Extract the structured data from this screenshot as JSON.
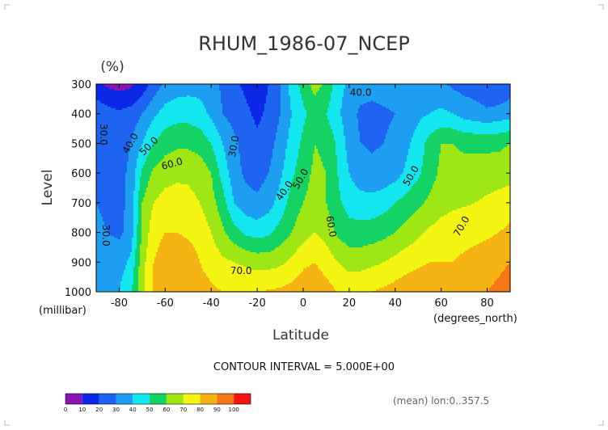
{
  "chart_data": {
    "type": "heatmap",
    "title": "RHUM_1986-07_NCEP",
    "unit_label": "(%)",
    "xlabel": "Latitude",
    "ylabel": "Level",
    "x_unit": "(degrees_north)",
    "y_unit": "(millibar)",
    "xlim": [
      -90,
      90
    ],
    "ylim": [
      300,
      1000
    ],
    "y_reversed": true,
    "x_ticks": [
      "-80",
      "-60",
      "-40",
      "-20",
      "0",
      "20",
      "40",
      "60",
      "80"
    ],
    "x_tick_values": [
      -80,
      -60,
      -40,
      -20,
      0,
      20,
      40,
      60,
      80
    ],
    "y_ticks": [
      "300",
      "400",
      "500",
      "600",
      "700",
      "800",
      "900",
      "1000"
    ],
    "y_tick_values": [
      300,
      400,
      500,
      600,
      700,
      800,
      900,
      1000
    ],
    "contour_interval_text": "CONTOUR INTERVAL = 5.000E+00",
    "footer_text": "(mean) lon:0..357.5",
    "colorbar": {
      "ticks": [
        "0",
        "10",
        "20",
        "30",
        "40",
        "50",
        "60",
        "70",
        "80",
        "90",
        "100"
      ],
      "colors": [
        "#8a14b4",
        "#0a28e6",
        "#1e64f0",
        "#1e9ef0",
        "#14e6f0",
        "#14d264",
        "#9ee614",
        "#f5f514",
        "#f5b414",
        "#f57814",
        "#f51414"
      ]
    },
    "contour_labels": [
      {
        "text": "30.0",
        "lat": -30,
        "lev": 510,
        "rot": -80
      },
      {
        "text": "30.0",
        "lat": -86,
        "lev": 810,
        "rot": 90
      },
      {
        "text": "30.0",
        "lat": -87,
        "lev": 470,
        "rot": 90
      },
      {
        "text": "40.0",
        "lat": -75,
        "lev": 500,
        "rot": -60
      },
      {
        "text": "50.0",
        "lat": -67,
        "lev": 510,
        "rot": -45
      },
      {
        "text": "60.0",
        "lat": -57,
        "lev": 570,
        "rot": -15
      },
      {
        "text": "70.0",
        "lat": -27,
        "lev": 930,
        "rot": 0
      },
      {
        "text": "40.0",
        "lat": -8,
        "lev": 660,
        "rot": -55
      },
      {
        "text": "50.0",
        "lat": -1,
        "lev": 620,
        "rot": -60
      },
      {
        "text": "60.0",
        "lat": 12,
        "lev": 780,
        "rot": 80
      },
      {
        "text": "40.0",
        "lat": 25,
        "lev": 330,
        "rot": 0
      },
      {
        "text": "50.0",
        "lat": 47,
        "lev": 610,
        "rot": -60
      },
      {
        "text": "70.0",
        "lat": 69,
        "lev": 780,
        "rot": -60
      }
    ],
    "field": {
      "lat": [
        -90,
        -85,
        -80,
        -75,
        -70,
        -65,
        -60,
        -55,
        -50,
        -45,
        -40,
        -35,
        -30,
        -25,
        -20,
        -15,
        -10,
        -5,
        0,
        5,
        10,
        15,
        20,
        25,
        30,
        35,
        40,
        45,
        50,
        55,
        60,
        65,
        70,
        75,
        80,
        85,
        90
      ],
      "lev": [
        300,
        400,
        500,
        600,
        700,
        800,
        900,
        1000
      ],
      "values": [
        [
          14,
          8,
          6,
          8,
          14,
          24,
          32,
          35,
          36,
          36,
          34,
          28,
          22,
          18,
          15,
          20,
          30,
          44,
          54,
          64,
          58,
          44,
          38,
          35,
          35,
          36,
          37,
          38,
          36,
          34,
          32,
          28,
          26,
          25,
          22,
          20,
          24
        ],
        [
          26,
          24,
          22,
          24,
          30,
          38,
          44,
          46,
          46,
          44,
          38,
          30,
          26,
          22,
          18,
          22,
          30,
          40,
          48,
          54,
          50,
          42,
          34,
          28,
          26,
          28,
          30,
          34,
          38,
          40,
          42,
          40,
          36,
          34,
          32,
          34,
          36
        ],
        [
          28,
          26,
          26,
          30,
          40,
          50,
          56,
          58,
          58,
          56,
          50,
          40,
          32,
          26,
          22,
          26,
          34,
          44,
          52,
          60,
          58,
          48,
          36,
          30,
          29,
          30,
          33,
          38,
          44,
          54,
          60,
          60,
          58,
          58,
          58,
          58,
          60
        ],
        [
          30,
          28,
          27,
          32,
          52,
          62,
          66,
          68,
          68,
          66,
          60,
          46,
          34,
          28,
          26,
          30,
          38,
          48,
          56,
          62,
          60,
          50,
          40,
          34,
          32,
          33,
          36,
          42,
          48,
          56,
          62,
          64,
          64,
          64,
          64,
          65,
          66
        ],
        [
          30,
          28,
          27,
          33,
          60,
          70,
          74,
          74,
          73,
          70,
          64,
          54,
          40,
          34,
          32,
          36,
          44,
          54,
          60,
          64,
          60,
          52,
          46,
          44,
          44,
          46,
          50,
          54,
          58,
          62,
          66,
          68,
          69,
          70,
          72,
          74,
          76
        ],
        [
          32,
          30,
          28,
          34,
          62,
          76,
          80,
          80,
          78,
          76,
          70,
          62,
          54,
          48,
          46,
          48,
          54,
          60,
          66,
          70,
          66,
          58,
          54,
          54,
          55,
          57,
          60,
          64,
          68,
          72,
          74,
          76,
          76,
          77,
          78,
          80,
          82
        ],
        [
          38,
          36,
          36,
          42,
          66,
          80,
          86,
          90,
          86,
          80,
          76,
          72,
          70,
          68,
          66,
          66,
          68,
          72,
          78,
          80,
          76,
          70,
          66,
          66,
          68,
          70,
          73,
          76,
          78,
          80,
          80,
          80,
          82,
          84,
          86,
          88,
          90
        ],
        [
          40,
          40,
          40,
          48,
          68,
          82,
          88,
          90,
          88,
          84,
          82,
          80,
          80,
          80,
          80,
          81,
          82,
          84,
          86,
          86,
          84,
          80,
          78,
          79,
          80,
          82,
          84,
          86,
          88,
          88,
          88,
          86,
          87,
          88,
          90,
          92,
          94
        ]
      ]
    }
  }
}
